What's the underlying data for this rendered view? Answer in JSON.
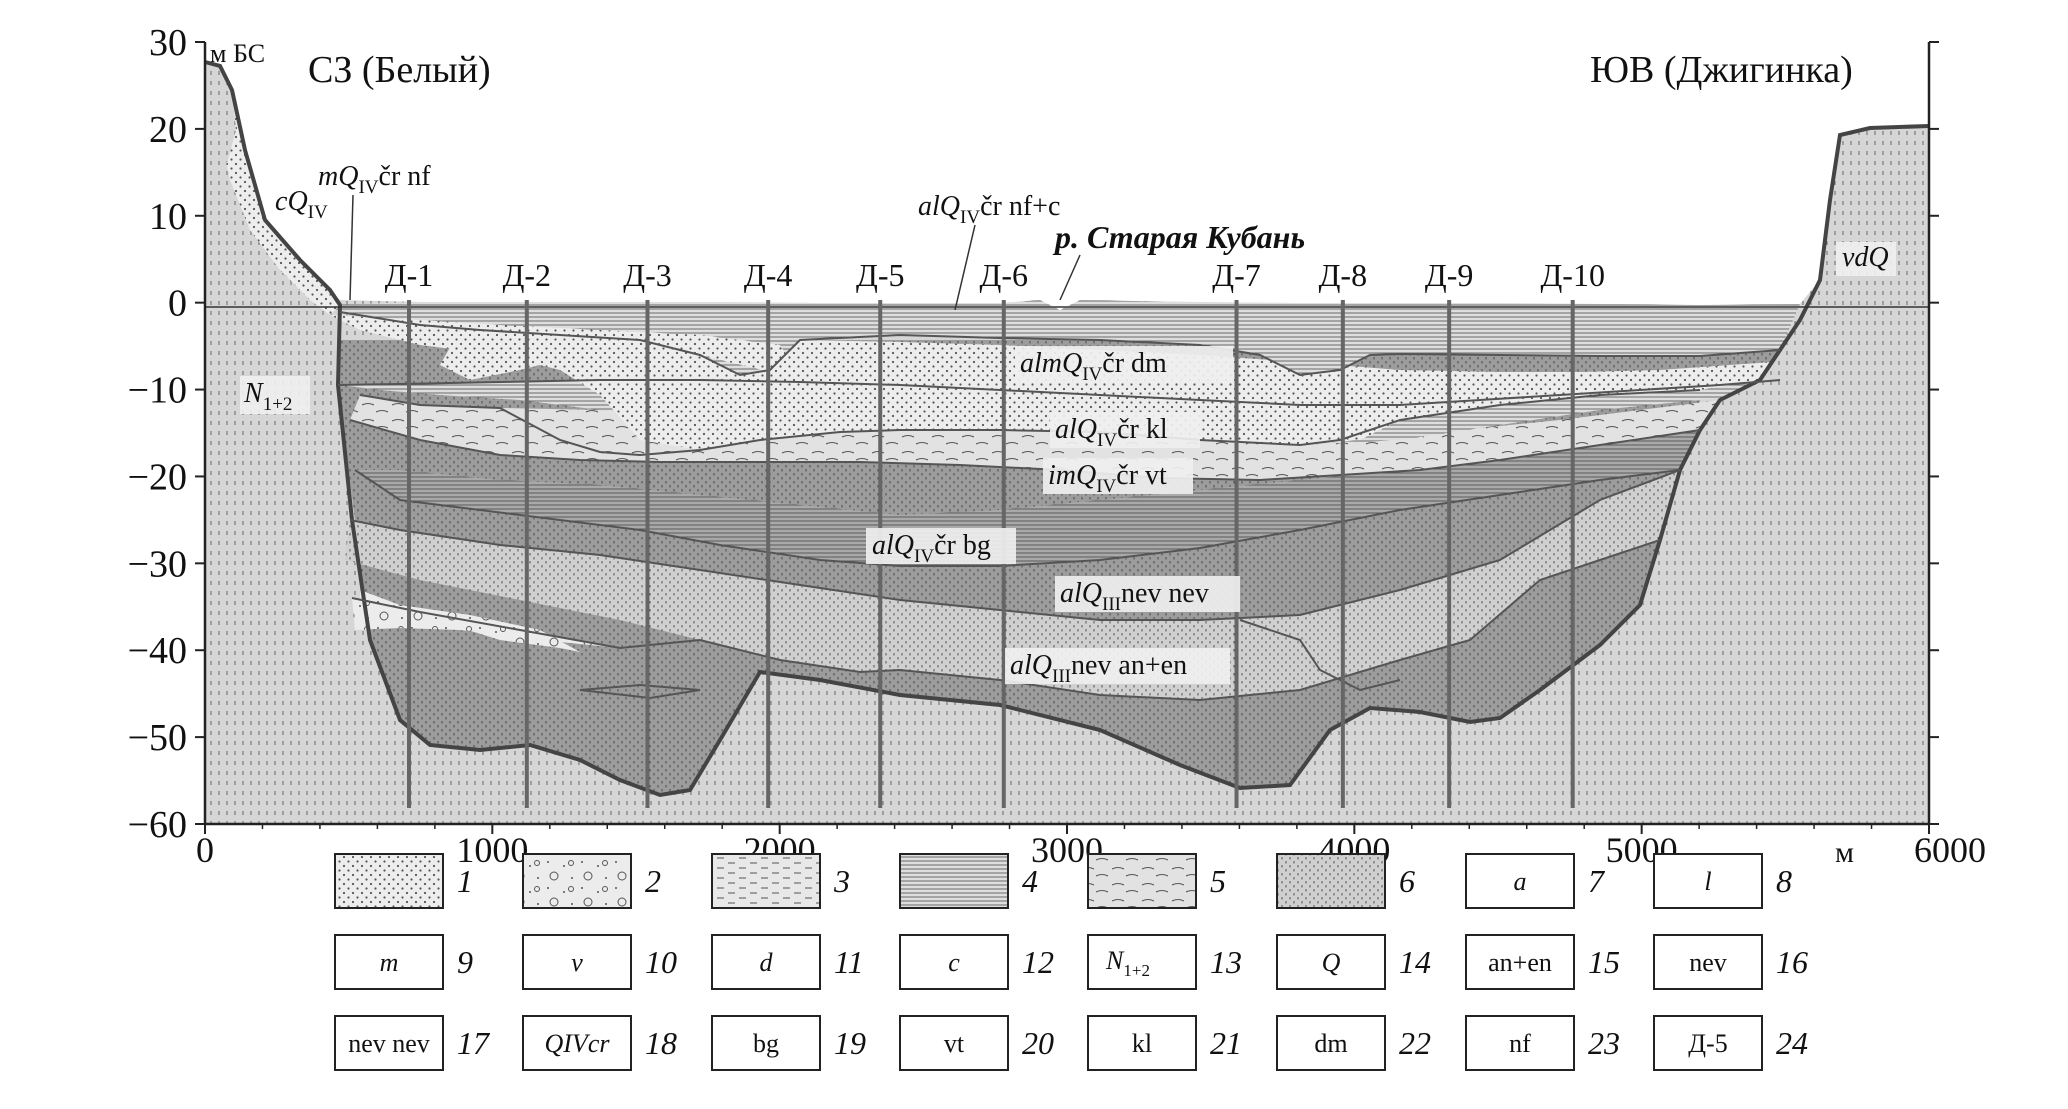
{
  "title_left": "СЗ (Белый)",
  "title_right": "ЮВ (Джигинка)",
  "y_unit": "м БС",
  "x_unit": "м",
  "y_ticks": [
    "30",
    "20",
    "10",
    "0",
    "−10",
    "−20",
    "−30",
    "−40",
    "−50",
    "−60"
  ],
  "x_ticks": [
    "0",
    "1000",
    "2000",
    "3000",
    "4000",
    "5000",
    "6000"
  ],
  "wells": [
    {
      "label": "Д-1",
      "x": 710
    },
    {
      "label": "Д-2",
      "x": 1120
    },
    {
      "label": "Д-3",
      "x": 1540
    },
    {
      "label": "Д-4",
      "x": 1960
    },
    {
      "label": "Д-5",
      "x": 2350
    },
    {
      "label": "Д-6",
      "x": 2780
    },
    {
      "label": "Д-7",
      "x": 3590
    },
    {
      "label": "Д-8",
      "x": 3960
    },
    {
      "label": "Д-9",
      "x": 4330
    },
    {
      "label": "Д-10",
      "x": 4760
    }
  ],
  "river_label": "р. Старая Кубань",
  "units": {
    "cq4": {
      "pre": "c",
      "q": "Q",
      "sub": "IV",
      "post": ""
    },
    "mq4": {
      "pre": "m",
      "q": "Q",
      "sub": "IV",
      "post": "čr nf"
    },
    "alq4_nfc": {
      "pre": "al",
      "q": "Q",
      "sub": "IV",
      "post": "čr nf+c"
    },
    "almq4_dm": {
      "pre": "alm",
      "q": "Q",
      "sub": "IV",
      "post": "čr dm"
    },
    "alq4_kl": {
      "pre": "al",
      "q": "Q",
      "sub": "IV",
      "post": "čr kl"
    },
    "imq4_vt": {
      "pre": "im",
      "q": "Q",
      "sub": "IV",
      "post": "čr vt"
    },
    "alq4_bg": {
      "pre": "al",
      "q": "Q",
      "sub": "IV",
      "post": "čr bg"
    },
    "alq3_nev": {
      "pre": "al",
      "q": "Q",
      "sub": "III",
      "post": "nev nev"
    },
    "alq3_anen": {
      "pre": "al",
      "q": "Q",
      "sub": "III",
      "post": "nev an+en"
    },
    "n12": {
      "main": "N",
      "sub": "1+2"
    },
    "vdq": {
      "text": "vdQ"
    }
  },
  "legend": [
    {
      "num": "1",
      "kind": "pattern",
      "pattern": "dots"
    },
    {
      "num": "2",
      "kind": "pattern",
      "pattern": "gravel"
    },
    {
      "num": "3",
      "kind": "pattern",
      "pattern": "dashes"
    },
    {
      "num": "4",
      "kind": "pattern",
      "pattern": "hlines"
    },
    {
      "num": "5",
      "kind": "pattern",
      "pattern": "swirl"
    },
    {
      "num": "6",
      "kind": "pattern",
      "pattern": "vdots"
    },
    {
      "num": "7",
      "kind": "text",
      "text": "a",
      "italic": true
    },
    {
      "num": "8",
      "kind": "text",
      "text": "l",
      "italic": true
    },
    {
      "num": "9",
      "kind": "text",
      "text": "m",
      "italic": true
    },
    {
      "num": "10",
      "kind": "text",
      "text": "v",
      "italic": true
    },
    {
      "num": "11",
      "kind": "text",
      "text": "d",
      "italic": true
    },
    {
      "num": "12",
      "kind": "text",
      "text": "c",
      "italic": true
    },
    {
      "num": "13",
      "kind": "sub",
      "main": "N",
      "sub": "1+2"
    },
    {
      "num": "14",
      "kind": "text",
      "text": "Q",
      "italic": true
    },
    {
      "num": "15",
      "kind": "text",
      "text": "an+en",
      "italic": false
    },
    {
      "num": "16",
      "kind": "text",
      "text": "nev",
      "italic": false
    },
    {
      "num": "17",
      "kind": "text",
      "text": "nev nev",
      "italic": false
    },
    {
      "num": "18",
      "kind": "text",
      "text": "QIVcr",
      "italic": true
    },
    {
      "num": "19",
      "kind": "text",
      "text": "bg",
      "italic": false
    },
    {
      "num": "20",
      "kind": "text",
      "text": "vt",
      "italic": false
    },
    {
      "num": "21",
      "kind": "text",
      "text": "kl",
      "italic": false
    },
    {
      "num": "22",
      "kind": "text",
      "text": "dm",
      "italic": false
    },
    {
      "num": "23",
      "kind": "text",
      "text": "nf",
      "italic": false
    },
    {
      "num": "24",
      "kind": "text",
      "text": "Д-5",
      "italic": false
    }
  ]
}
